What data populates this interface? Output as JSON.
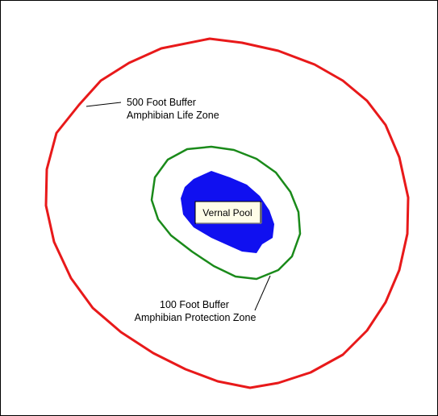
{
  "labels": {
    "outer_buffer_line1": "500 Foot Buffer",
    "outer_buffer_line2": "Amphibian Life Zone",
    "inner_buffer_line1": "100 Foot Buffer",
    "inner_buffer_line2": "Amphibian Protection Zone",
    "pool": "Vernal Pool"
  },
  "colors": {
    "outer_buffer": "#e8191a",
    "inner_buffer": "#1a8a1a",
    "pool_fill": "#1010f0",
    "pool_label_bg": "#fffde8"
  }
}
